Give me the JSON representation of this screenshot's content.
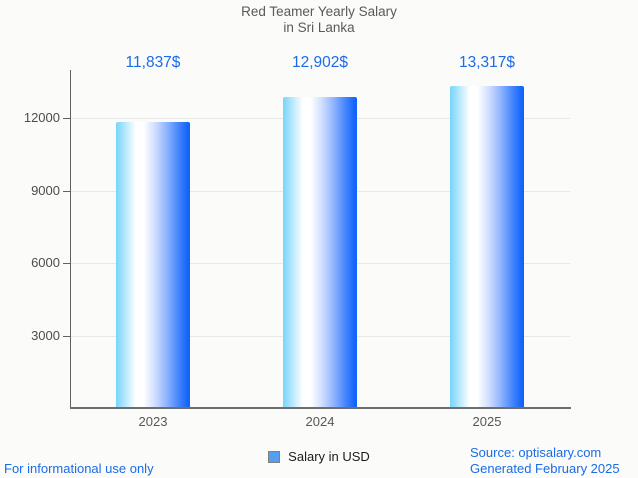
{
  "page": {
    "background": "#fbfbf9",
    "accent_blue": "#1a6ce9"
  },
  "chart_data": {
    "type": "bar",
    "title": "Red Teamer Yearly Salary",
    "subtitle": "in Sri Lanka",
    "categories": [
      "2023",
      "2024",
      "2025"
    ],
    "series": [
      {
        "name": "Salary in USD",
        "values": [
          11837,
          12902,
          13317
        ],
        "value_labels": [
          "11,837$",
          "12,902$",
          "13,317$"
        ]
      }
    ],
    "ylim": [
      0,
      14000
    ],
    "yticks": [
      3000,
      6000,
      9000,
      12000
    ],
    "ytick_labels": [
      "3000",
      "6000",
      "9000",
      "12000"
    ],
    "grid": true,
    "legend_position": "bottom",
    "colors": {
      "title": "#5a5a5a",
      "value_label": "#1a6ce9",
      "axis_line": "#616161",
      "bottom_axis_line": "#6e6e6e",
      "grid_line": "#e8e8e6",
      "ytick_label": "#4d4d4d",
      "category_label": "#575757",
      "legend_swatch_fill": "#55a0ee",
      "legend_swatch_border": "#808080"
    },
    "bar_gradient_stops": [
      [
        "0%",
        "#79d4fc"
      ],
      [
        "10%",
        "#a9e4fd"
      ],
      [
        "27%",
        "#ffffff"
      ],
      [
        "37%",
        "#ffffff"
      ],
      [
        "52%",
        "#d2e0fe"
      ],
      [
        "68%",
        "#92b5fe"
      ],
      [
        "85%",
        "#4384fc"
      ],
      [
        "97%",
        "#1365fa"
      ],
      [
        "100%",
        "#1064f8"
      ]
    ]
  },
  "footer": {
    "disclaimer": "For informational use only",
    "source": "Source: optisalary.com",
    "generated": "Generated February 2025"
  }
}
